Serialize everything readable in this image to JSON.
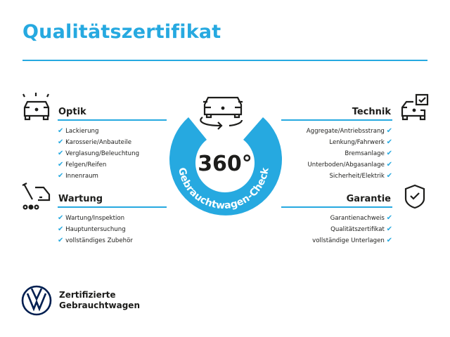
{
  "title": "Qualitätszertifikat",
  "accent": "#26a9e0",
  "center": {
    "number": "360°",
    "ring_text": "Gebrauchtwagen-Check",
    "icon": "car-rotate-icon"
  },
  "sections": {
    "optik": {
      "title": "Optik",
      "icon": "car-lights-icon",
      "items": [
        "Lackierung",
        "Karosserie/Anbauteile",
        "Verglasung/Beleuchtung",
        "Felgen/Reifen",
        "Innenraum"
      ]
    },
    "wartung": {
      "title": "Wartung",
      "icon": "service-tools-icon",
      "items": [
        "Wartung/Inspektion",
        "Hauptuntersuchung",
        "vollständiges Zubehör"
      ]
    },
    "technik": {
      "title": "Technik",
      "icon": "car-check-icon",
      "items": [
        "Aggregate/Antriebsstrang",
        "Lenkung/Fahrwerk",
        "Bremsanlage",
        "Unterboden/Abgasanlage",
        "Sicherheit/Elektrik"
      ]
    },
    "garantie": {
      "title": "Garantie",
      "icon": "shield-check-icon",
      "items": [
        "Garantienachweis",
        "Qualitätszertifikat",
        "vollständige Unterlagen"
      ]
    }
  },
  "logo": {
    "line1": "Zertifizierte",
    "line2": "Gebrauchtwagen",
    "icon": "vw-logo-icon"
  },
  "check_glyph": "✔"
}
